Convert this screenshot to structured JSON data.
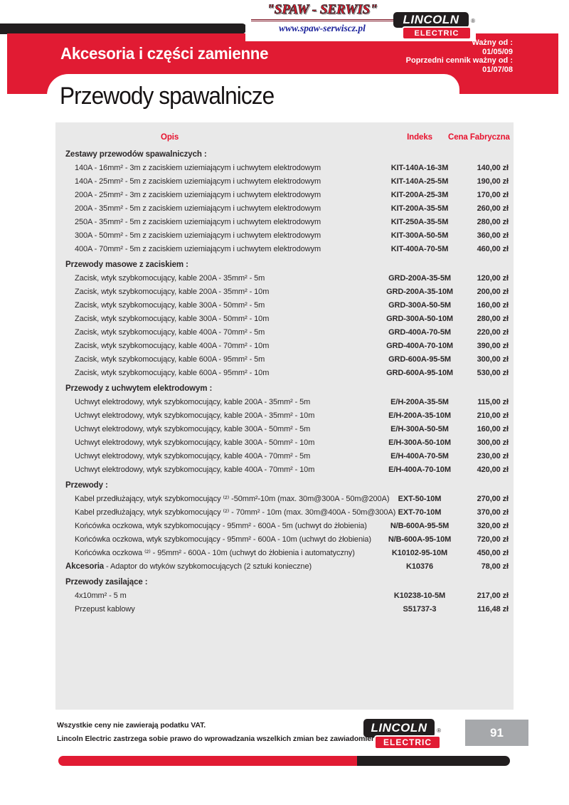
{
  "header": {
    "banner_title": "Akcesoria i części zamienne",
    "valid_label": "Ważny od :",
    "valid_date": "01/05/09",
    "previous_label": "Poprzedni cennik ważny od :",
    "previous_date": "01/07/08",
    "page_title": "Przewody spawalnicze",
    "spaw_logo": {
      "title": "\"SPAW - SERWIS\"",
      "url": "www.spaw-serwiscz.pl"
    },
    "lincoln_logo": {
      "line1": "LINCOLN",
      "line2": "ELECTRIC",
      "reg": "®"
    }
  },
  "table": {
    "columns": {
      "desc": "Opis",
      "index": "Indeks",
      "price": "Cena Fabryczna"
    },
    "sections": [
      {
        "title": "Zestawy przewodów spawalniczych :",
        "rows": [
          {
            "desc": "140A - 16mm² - 3m z zaciskiem uziemiającym i uchwytem elektrodowym",
            "index": "KIT-140A-16-3M",
            "price": "140,00 zł"
          },
          {
            "desc": "140A - 25mm² - 5m z zaciskiem uziemiającym i uchwytem elektrodowym",
            "index": "KIT-140A-25-5M",
            "price": "190,00 zł"
          },
          {
            "desc": "200A - 25mm² - 3m z zaciskiem uziemiającym i uchwytem elektrodowym",
            "index": "KIT-200A-25-3M",
            "price": "170,00 zł"
          },
          {
            "desc": "200A - 35mm² - 5m z zaciskiem uziemiającym i uchwytem elektrodowym",
            "index": "KIT-200A-35-5M",
            "price": "260,00 zł"
          },
          {
            "desc": "250A - 35mm² - 5m z zaciskiem uziemiającym i uchwytem elektrodowym",
            "index": "KIT-250A-35-5M",
            "price": "280,00 zł"
          },
          {
            "desc": "300A - 50mm² - 5m z zaciskiem uziemiającym i uchwytem elektrodowym",
            "index": "KIT-300A-50-5M",
            "price": "360,00 zł"
          },
          {
            "desc": "400A - 70mm² - 5m z zaciskiem uziemiającym i uchwytem elektrodowym",
            "index": "KIT-400A-70-5M",
            "price": "460,00 zł"
          }
        ]
      },
      {
        "title": "Przewody masowe z zaciskiem :",
        "rows": [
          {
            "desc": "Zacisk, wtyk szybkomocujący, kable 200A - 35mm² - 5m",
            "index": "GRD-200A-35-5M",
            "price": "120,00 zł"
          },
          {
            "desc": "Zacisk, wtyk szybkomocujący, kable 200A - 35mm² - 10m",
            "index": "GRD-200A-35-10M",
            "price": "200,00 zł"
          },
          {
            "desc": "Zacisk, wtyk szybkomocujący, kable 300A - 50mm² - 5m",
            "index": "GRD-300A-50-5M",
            "price": "160,00 zł"
          },
          {
            "desc": "Zacisk, wtyk szybkomocujący, kable 300A - 50mm² - 10m",
            "index": "GRD-300A-50-10M",
            "price": "280,00 zł"
          },
          {
            "desc": "Zacisk, wtyk szybkomocujący, kable 400A - 70mm² - 5m",
            "index": "GRD-400A-70-5M",
            "price": "220,00 zł"
          },
          {
            "desc": "Zacisk, wtyk szybkomocujący, kable 400A - 70mm² - 10m",
            "index": "GRD-400A-70-10M",
            "price": "390,00 zł"
          },
          {
            "desc": "Zacisk, wtyk szybkomocujący, kable 600A - 95mm² - 5m",
            "index": "GRD-600A-95-5M",
            "price": "300,00 zł"
          },
          {
            "desc": "Zacisk, wtyk szybkomocujący, kable 600A - 95mm² - 10m",
            "index": "GRD-600A-95-10M",
            "price": "530,00 zł"
          }
        ]
      },
      {
        "title": "Przewody z uchwytem elektrodowym :",
        "rows": [
          {
            "desc": "Uchwyt elektrodowy, wtyk szybkomocujący, kable 200A - 35mm² - 5m",
            "index": "E/H-200A-35-5M",
            "price": "115,00 zł"
          },
          {
            "desc": "Uchwyt elektrodowy, wtyk szybkomocujący, kable 200A - 35mm² - 10m",
            "index": "E/H-200A-35-10M",
            "price": "210,00 zł"
          },
          {
            "desc": "Uchwyt elektrodowy, wtyk szybkomocujący, kable 300A - 50mm² - 5m",
            "index": "E/H-300A-50-5M",
            "price": "160,00 zł"
          },
          {
            "desc": "Uchwyt elektrodowy, wtyk szybkomocujący, kable 300A - 50mm² - 10m",
            "index": "E/H-300A-50-10M",
            "price": "300,00 zł"
          },
          {
            "desc": "Uchwyt elektrodowy, wtyk szybkomocujący, kable 400A - 70mm² - 5m",
            "index": "E/H-400A-70-5M",
            "price": "230,00 zł"
          },
          {
            "desc": "Uchwyt elektrodowy, wtyk szybkomocujący, kable 400A - 70mm² - 10m",
            "index": "E/H-400A-70-10M",
            "price": "420,00 zł"
          }
        ]
      },
      {
        "title": "Przewody :",
        "rows": [
          {
            "desc": "Kabel przedłużający, wtyk szybkomocujący ⁽²⁾ -50mm²-10m (max. 30m@300A - 50m@200A)",
            "index": "EXT-50-10M",
            "price": "270,00 zł"
          },
          {
            "desc": "Kabel przedłużający, wtyk szybkomocujący ⁽²⁾ - 70mm² - 10m (max. 30m@400A - 50m@300A)",
            "index": "EXT-70-10M",
            "price": "370,00 zł"
          },
          {
            "desc": "Końcówka oczkowa, wtyk szybkomocujący - 95mm² - 600A - 5m (uchwyt do żłobienia)",
            "index": "N/B-600A-95-5M",
            "price": "320,00 zł"
          },
          {
            "desc": "Końcówka oczkowa, wtyk szybkomocujący - 95mm² - 600A - 10m (uchwyt do żłobienia)",
            "index": "N/B-600A-95-10M",
            "price": "720,00 zł"
          },
          {
            "desc": "Końcówka oczkowa ⁽²⁾ - 95mm² - 600A - 10m (uchwyt do żłobienia i automatyczny)",
            "index": "K10102-95-10M",
            "price": "450,00 zł"
          }
        ]
      },
      {
        "title": "",
        "rows": [
          {
            "bold": "Akcesoria",
            "desc": " - Adaptor do wtyków szybkomocujących (2 sztuki konieczne)",
            "index": "K10376",
            "price": "78,00 zł",
            "indent": false
          }
        ]
      },
      {
        "title": "Przewody zasilające :",
        "rows": [
          {
            "desc": "4x10mm² - 5 m",
            "index": "K10238-10-5M",
            "price": "217,00 zł"
          },
          {
            "desc": "Przepust kablowy",
            "index": "S51737-3",
            "price": "116,48 zł"
          }
        ]
      }
    ]
  },
  "footer": {
    "note1": "Wszystkie ceny nie zawierają podatku VAT.",
    "note2": "Lincoln Electric zastrzega sobie prawo do wprowadzania wszelkich zmian bez zawiadomienia.",
    "lincoln_logo": {
      "line1": "LINCOLN",
      "line2": "ELECTRIC",
      "reg": "®"
    },
    "page_number": "91"
  }
}
